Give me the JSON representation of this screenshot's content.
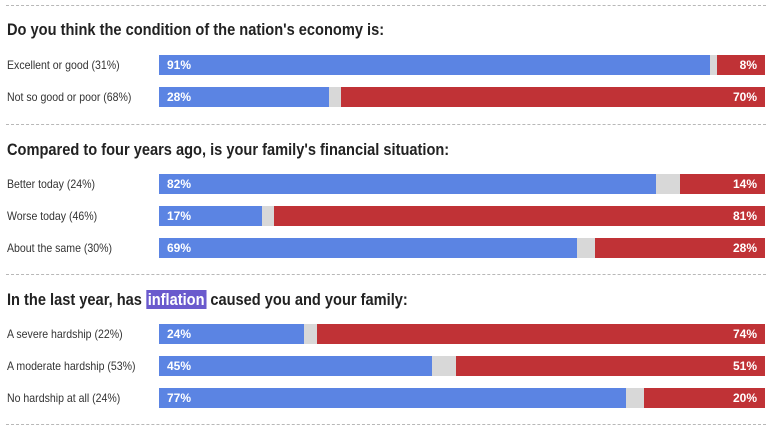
{
  "chart_data": {
    "type": "bar",
    "colors": {
      "positive": "#5b84e3",
      "negative": "#c03236",
      "neutral": "#d8d8d8"
    },
    "sections": [
      {
        "title": "Do you think the condition of the nation's economy is:",
        "rows": [
          {
            "label": "Excellent or good (31%)",
            "positive": 91,
            "negative": 8
          },
          {
            "label": "Not so good or poor (68%)",
            "positive": 28,
            "negative": 70
          }
        ]
      },
      {
        "title": "Compared to four years ago, is your family's financial situation:",
        "rows": [
          {
            "label": "Better today (24%)",
            "positive": 82,
            "negative": 14
          },
          {
            "label": "Worse today (46%)",
            "positive": 17,
            "negative": 81
          },
          {
            "label": "About the same (30%)",
            "positive": 69,
            "negative": 28
          }
        ]
      },
      {
        "title_before": "In the last year, has",
        "title_highlight": "inflation",
        "title_after": "caused you and your family:",
        "rows": [
          {
            "label": "A severe hardship (22%)",
            "positive": 24,
            "negative": 74
          },
          {
            "label": "A moderate hardship (53%)",
            "positive": 45,
            "negative": 51
          },
          {
            "label": "No hardship at all (24%)",
            "positive": 77,
            "negative": 20
          }
        ]
      }
    ]
  }
}
